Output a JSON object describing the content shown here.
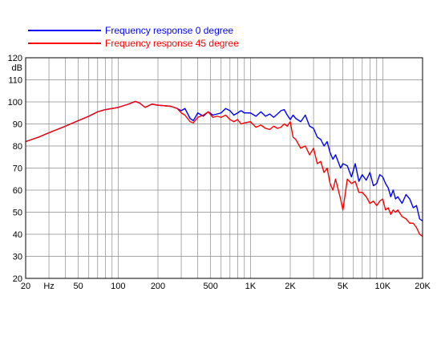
{
  "chart_data": {
    "type": "line",
    "xscale": "log",
    "xlim": [
      20,
      20000
    ],
    "ylim": [
      20,
      120
    ],
    "ylabel": "dB",
    "x_tick_labels": [
      {
        "value": 20,
        "label": "20"
      },
      {
        "value": 30,
        "label": "Hz"
      },
      {
        "value": 50,
        "label": "50"
      },
      {
        "value": 100,
        "label": "100"
      },
      {
        "value": 200,
        "label": "200"
      },
      {
        "value": 500,
        "label": "500"
      },
      {
        "value": 1000,
        "label": "1K"
      },
      {
        "value": 2000,
        "label": "2K"
      },
      {
        "value": 5000,
        "label": "5K"
      },
      {
        "value": 10000,
        "label": "10K"
      },
      {
        "value": 20000,
        "label": "20K"
      }
    ],
    "y_ticks": [
      20,
      30,
      40,
      50,
      60,
      70,
      80,
      90,
      100,
      110,
      120
    ],
    "grid": true,
    "legend_position": "top-left",
    "series": [
      {
        "name": "Frequency response 0 degree",
        "color": "#0000ff",
        "points": [
          [
            20,
            82
          ],
          [
            25,
            84
          ],
          [
            30,
            86
          ],
          [
            40,
            89
          ],
          [
            50,
            91.5
          ],
          [
            60,
            93.5
          ],
          [
            70,
            95.5
          ],
          [
            80,
            96.5
          ],
          [
            100,
            97.5
          ],
          [
            120,
            99
          ],
          [
            135,
            100.2
          ],
          [
            145,
            99.5
          ],
          [
            160,
            97.5
          ],
          [
            180,
            99
          ],
          [
            200,
            98.5
          ],
          [
            250,
            98
          ],
          [
            280,
            97
          ],
          [
            300,
            96
          ],
          [
            320,
            97
          ],
          [
            350,
            92.5
          ],
          [
            370,
            91.5
          ],
          [
            400,
            95
          ],
          [
            440,
            93.5
          ],
          [
            480,
            95.5
          ],
          [
            520,
            94
          ],
          [
            560,
            94.5
          ],
          [
            600,
            95
          ],
          [
            650,
            97
          ],
          [
            700,
            96
          ],
          [
            750,
            94
          ],
          [
            800,
            95
          ],
          [
            850,
            96
          ],
          [
            900,
            95
          ],
          [
            1000,
            95
          ],
          [
            1100,
            93.5
          ],
          [
            1200,
            95.5
          ],
          [
            1300,
            93.5
          ],
          [
            1400,
            94.5
          ],
          [
            1500,
            93
          ],
          [
            1600,
            94.5
          ],
          [
            1700,
            96
          ],
          [
            1800,
            96.5
          ],
          [
            1900,
            94
          ],
          [
            2000,
            92
          ],
          [
            2100,
            94
          ],
          [
            2200,
            92.5
          ],
          [
            2400,
            91
          ],
          [
            2600,
            94
          ],
          [
            2800,
            89
          ],
          [
            3000,
            88
          ],
          [
            3200,
            84
          ],
          [
            3400,
            83
          ],
          [
            3600,
            80
          ],
          [
            3800,
            82
          ],
          [
            4000,
            77
          ],
          [
            4200,
            74
          ],
          [
            4400,
            76
          ],
          [
            4800,
            70
          ],
          [
            5000,
            72
          ],
          [
            5400,
            71
          ],
          [
            5800,
            66
          ],
          [
            6200,
            72
          ],
          [
            6600,
            64
          ],
          [
            7000,
            67
          ],
          [
            7500,
            64.5
          ],
          [
            8000,
            68
          ],
          [
            8500,
            62
          ],
          [
            9000,
            63
          ],
          [
            9500,
            67
          ],
          [
            10000,
            66
          ],
          [
            10500,
            63
          ],
          [
            11000,
            61
          ],
          [
            11500,
            57
          ],
          [
            12000,
            60
          ],
          [
            12500,
            56
          ],
          [
            13000,
            57
          ],
          [
            14000,
            54
          ],
          [
            15000,
            58
          ],
          [
            16000,
            56
          ],
          [
            17000,
            52
          ],
          [
            18000,
            53
          ],
          [
            19000,
            47
          ],
          [
            20000,
            46
          ]
        ]
      },
      {
        "name": "Frequency response 45 degree",
        "color": "#ff0000",
        "points": [
          [
            20,
            82
          ],
          [
            25,
            84
          ],
          [
            30,
            86
          ],
          [
            40,
            89
          ],
          [
            50,
            91.5
          ],
          [
            60,
            93.5
          ],
          [
            70,
            95.5
          ],
          [
            80,
            96.5
          ],
          [
            100,
            97.5
          ],
          [
            120,
            99
          ],
          [
            135,
            100.2
          ],
          [
            145,
            99.5
          ],
          [
            160,
            97.5
          ],
          [
            180,
            99
          ],
          [
            200,
            98.5
          ],
          [
            250,
            98
          ],
          [
            280,
            97
          ],
          [
            300,
            95
          ],
          [
            320,
            94
          ],
          [
            350,
            91
          ],
          [
            370,
            90.5
          ],
          [
            400,
            93
          ],
          [
            440,
            94
          ],
          [
            480,
            95.5
          ],
          [
            520,
            93
          ],
          [
            560,
            93.5
          ],
          [
            600,
            93
          ],
          [
            650,
            94
          ],
          [
            700,
            92
          ],
          [
            750,
            91
          ],
          [
            800,
            92
          ],
          [
            850,
            90
          ],
          [
            900,
            90.5
          ],
          [
            1000,
            91
          ],
          [
            1100,
            88.5
          ],
          [
            1200,
            89.5
          ],
          [
            1300,
            88
          ],
          [
            1400,
            87.5
          ],
          [
            1500,
            89
          ],
          [
            1600,
            88
          ],
          [
            1700,
            88.5
          ],
          [
            1800,
            90
          ],
          [
            1900,
            89
          ],
          [
            2000,
            91
          ],
          [
            2100,
            84
          ],
          [
            2200,
            83
          ],
          [
            2400,
            79
          ],
          [
            2600,
            80
          ],
          [
            2800,
            76
          ],
          [
            3000,
            79
          ],
          [
            3200,
            72
          ],
          [
            3400,
            73
          ],
          [
            3600,
            68
          ],
          [
            3800,
            70
          ],
          [
            4000,
            63
          ],
          [
            4200,
            60
          ],
          [
            4400,
            65
          ],
          [
            4800,
            56
          ],
          [
            5000,
            51
          ],
          [
            5400,
            65
          ],
          [
            5800,
            63
          ],
          [
            6200,
            64
          ],
          [
            6600,
            59
          ],
          [
            7000,
            59
          ],
          [
            7500,
            57
          ],
          [
            8000,
            54
          ],
          [
            8500,
            55
          ],
          [
            9000,
            53
          ],
          [
            9500,
            55
          ],
          [
            10000,
            56
          ],
          [
            10500,
            51
          ],
          [
            11000,
            52
          ],
          [
            11500,
            49
          ],
          [
            12000,
            51
          ],
          [
            12500,
            50
          ],
          [
            13000,
            51
          ],
          [
            14000,
            48
          ],
          [
            15000,
            47
          ],
          [
            16000,
            45
          ],
          [
            17000,
            45
          ],
          [
            18000,
            43
          ],
          [
            19000,
            40
          ],
          [
            20000,
            39
          ]
        ]
      }
    ]
  }
}
